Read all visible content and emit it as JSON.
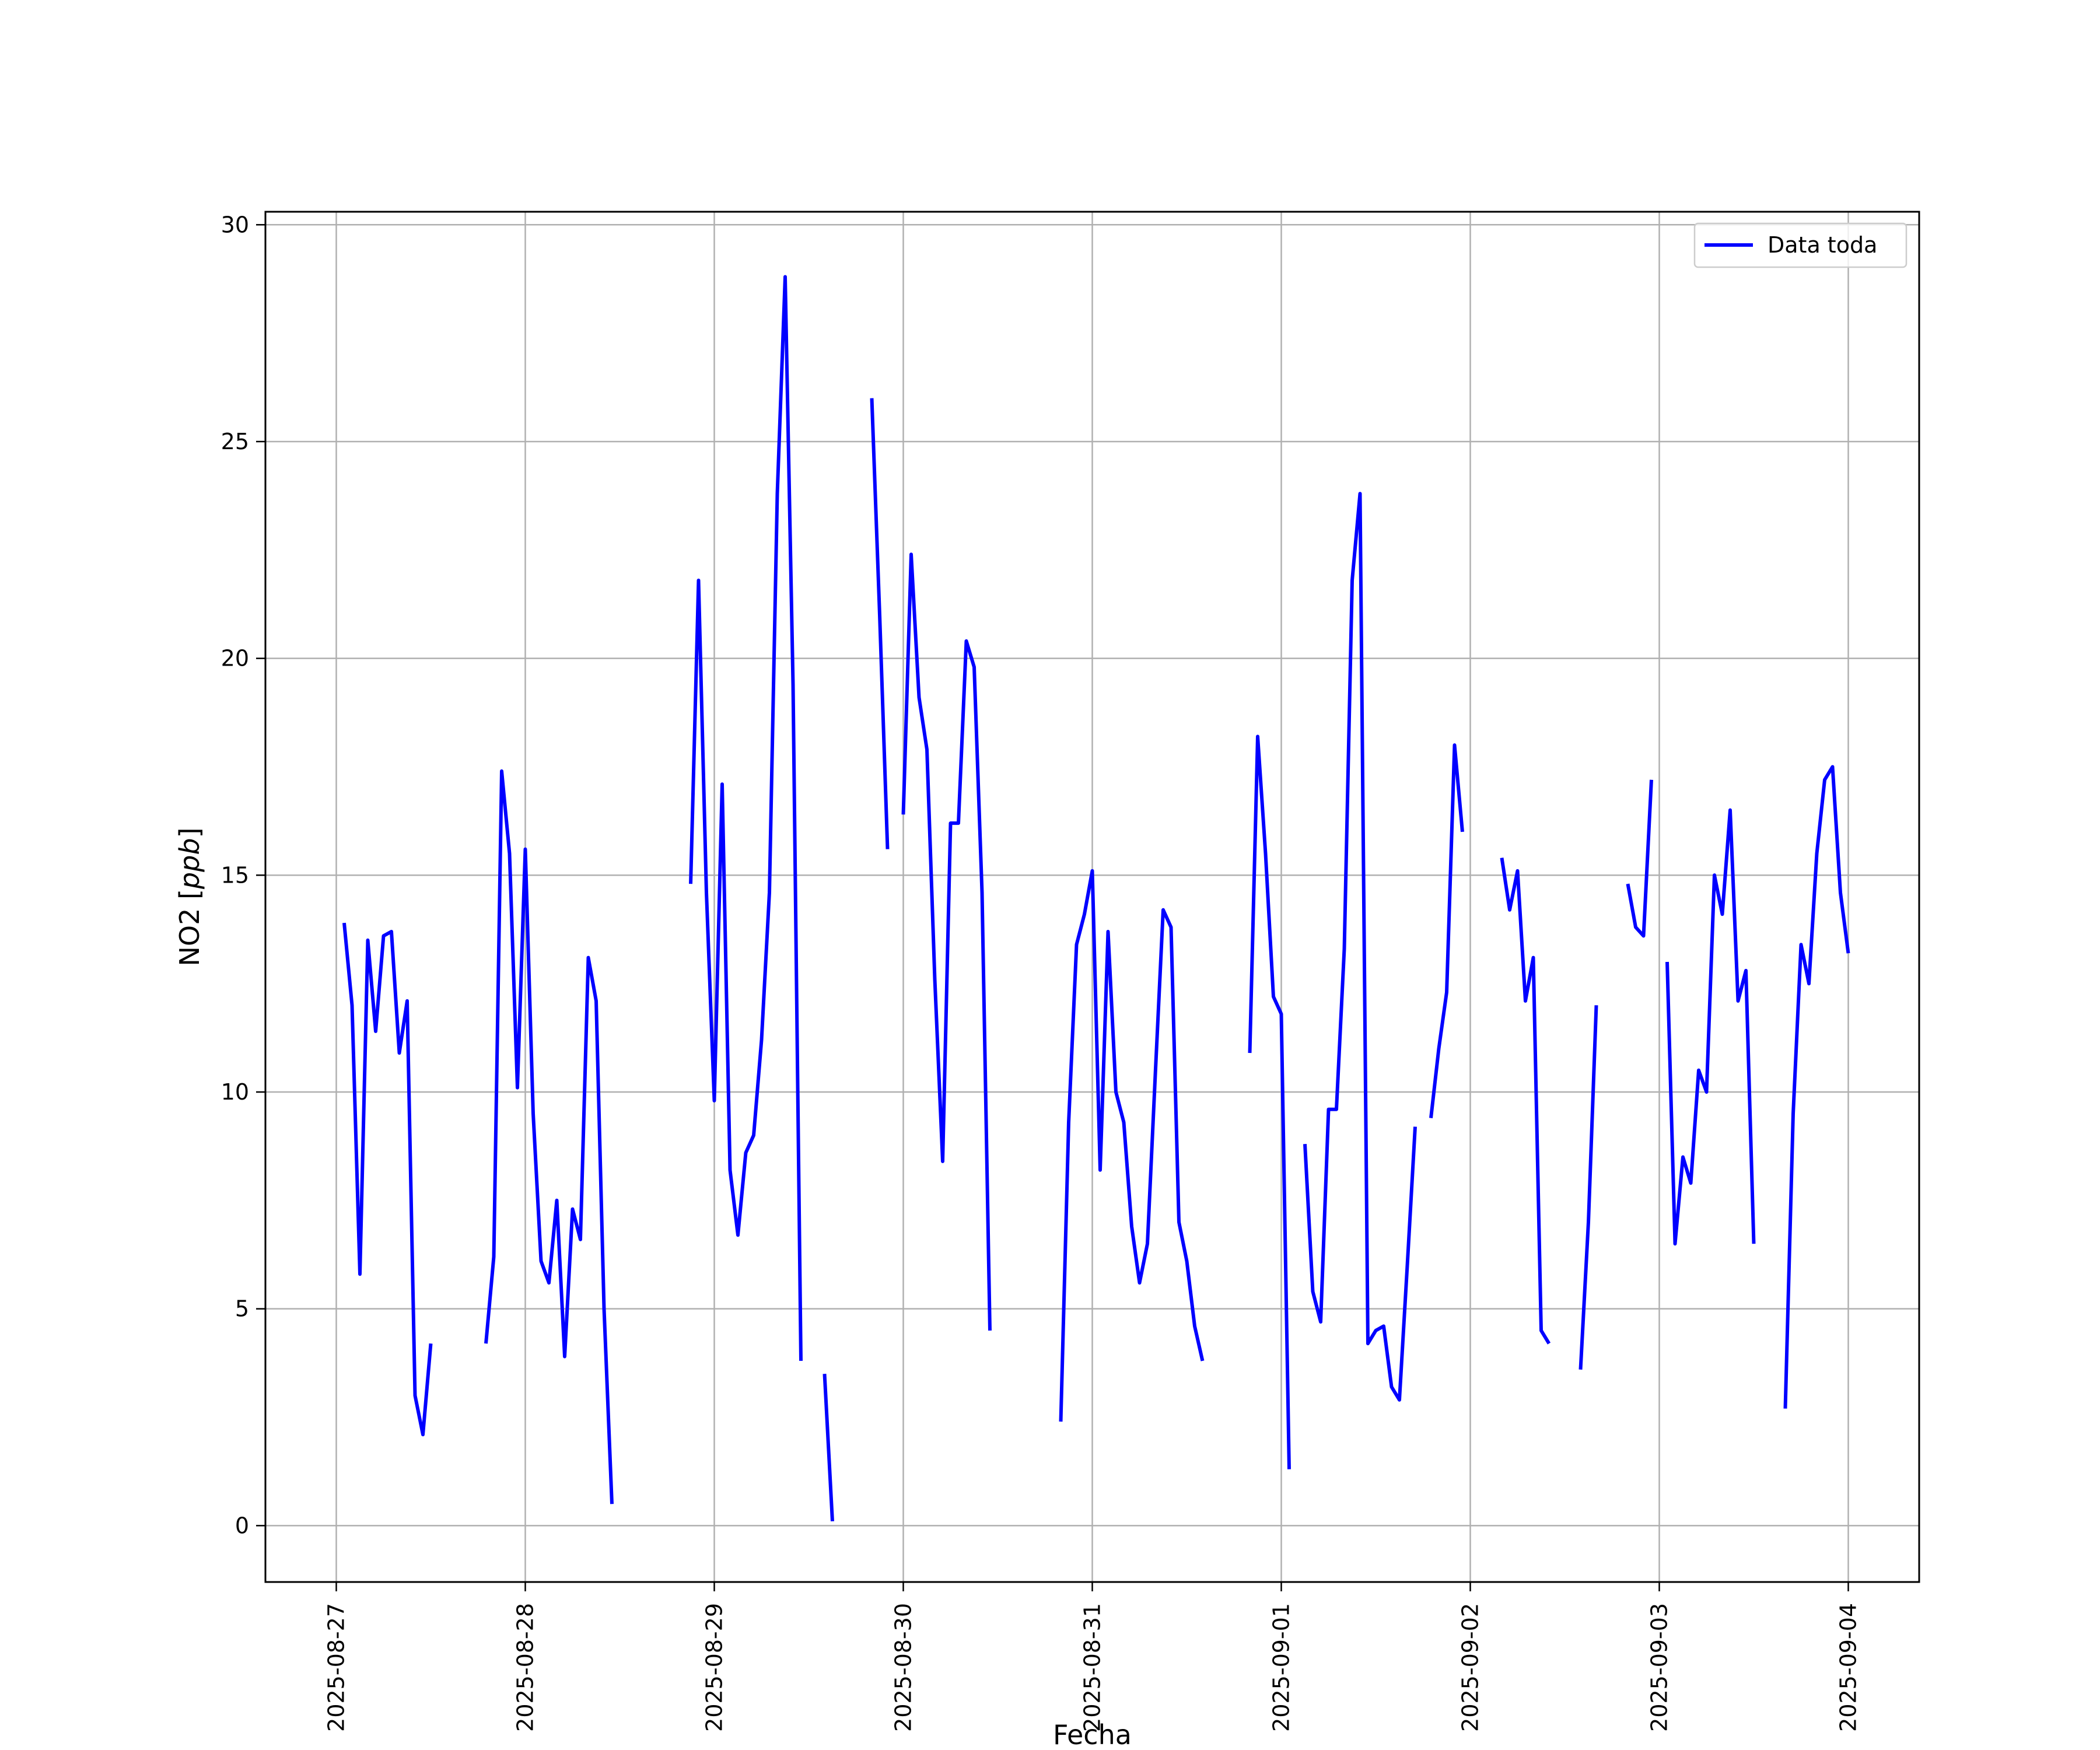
{
  "chart_data": {
    "type": "line",
    "title": "",
    "xlabel": "Fecha",
    "ylabel_prefix": "NO2 [",
    "ylabel_unit": "ppb",
    "ylabel_suffix": "]",
    "x_axis": {
      "type": "date",
      "range": [
        "2025-08-26T15:00",
        "2025-09-04T09:00"
      ],
      "ticks": [
        "2025-08-27",
        "2025-08-28",
        "2025-08-29",
        "2025-08-30",
        "2025-08-31",
        "2025-09-01",
        "2025-09-02",
        "2025-09-03",
        "2025-09-04"
      ],
      "tick_rotation": 90
    },
    "y_axis": {
      "range": [
        -1.3,
        30.3
      ],
      "ticks": [
        0,
        5,
        10,
        15,
        20,
        25,
        30
      ]
    },
    "grid": true,
    "legend": {
      "position": "top-right"
    },
    "series": [
      {
        "name": "Data toda",
        "color": "#0000ff",
        "segments": [
          [
            [
              "2025-08-27T01:00",
              13.9
            ],
            [
              "2025-08-27T02:00",
              12.0
            ],
            [
              "2025-08-27T03:00",
              5.8
            ],
            [
              "2025-08-27T04:00",
              13.5
            ],
            [
              "2025-08-27T05:00",
              11.4
            ],
            [
              "2025-08-27T06:00",
              13.6
            ],
            [
              "2025-08-27T07:00",
              13.7
            ],
            [
              "2025-08-27T08:00",
              10.9
            ],
            [
              "2025-08-27T09:00",
              12.1
            ],
            [
              "2025-08-27T10:00",
              3.0
            ],
            [
              "2025-08-27T11:00",
              2.1
            ],
            [
              "2025-08-27T12:00",
              4.2
            ]
          ],
          [
            [
              "2025-08-27T19:00",
              4.2
            ],
            [
              "2025-08-27T20:00",
              6.2
            ],
            [
              "2025-08-27T21:00",
              17.4
            ],
            [
              "2025-08-27T22:00",
              15.5
            ],
            [
              "2025-08-27T23:00",
              10.1
            ],
            [
              "2025-08-28T00:00",
              15.6
            ],
            [
              "2025-08-28T01:00",
              9.5
            ],
            [
              "2025-08-28T02:00",
              6.1
            ],
            [
              "2025-08-28T03:00",
              5.6
            ],
            [
              "2025-08-28T04:00",
              7.5
            ],
            [
              "2025-08-28T05:00",
              3.9
            ],
            [
              "2025-08-28T06:00",
              7.3
            ],
            [
              "2025-08-28T07:00",
              6.6
            ],
            [
              "2025-08-28T08:00",
              13.1
            ],
            [
              "2025-08-28T09:00",
              12.1
            ],
            [
              "2025-08-28T10:00",
              5.0
            ],
            [
              "2025-08-28T11:00",
              0.5
            ]
          ],
          [
            [
              "2025-08-28T21:00",
              14.8
            ],
            [
              "2025-08-28T22:00",
              21.8
            ],
            [
              "2025-08-28T23:00",
              14.6
            ],
            [
              "2025-08-29T00:00",
              9.8
            ],
            [
              "2025-08-29T01:00",
              17.1
            ],
            [
              "2025-08-29T02:00",
              8.2
            ],
            [
              "2025-08-29T03:00",
              6.7
            ],
            [
              "2025-08-29T04:00",
              8.6
            ],
            [
              "2025-08-29T05:00",
              9.0
            ],
            [
              "2025-08-29T06:00",
              11.2
            ],
            [
              "2025-08-29T07:00",
              14.6
            ],
            [
              "2025-08-29T08:00",
              23.8
            ],
            [
              "2025-08-29T09:00",
              28.8
            ],
            [
              "2025-08-29T10:00",
              19.4
            ],
            [
              "2025-08-29T11:00",
              3.8
            ]
          ],
          [
            [
              "2025-08-29T14:00",
              3.5
            ],
            [
              "2025-08-29T15:00",
              0.1
            ]
          ],
          [
            [
              "2025-08-29T20:00",
              26.0
            ],
            [
              "2025-08-29T21:00",
              21.0
            ],
            [
              "2025-08-29T22:00",
              15.6
            ]
          ],
          [
            [
              "2025-08-30T00:00",
              16.4
            ],
            [
              "2025-08-30T01:00",
              22.4
            ],
            [
              "2025-08-30T02:00",
              19.1
            ],
            [
              "2025-08-30T03:00",
              17.9
            ],
            [
              "2025-08-30T04:00",
              12.6
            ],
            [
              "2025-08-30T05:00",
              8.4
            ],
            [
              "2025-08-30T06:00",
              16.2
            ],
            [
              "2025-08-30T07:00",
              16.2
            ],
            [
              "2025-08-30T08:00",
              20.4
            ],
            [
              "2025-08-30T09:00",
              19.8
            ],
            [
              "2025-08-30T10:00",
              14.6
            ],
            [
              "2025-08-30T11:00",
              4.5
            ]
          ],
          [
            [
              "2025-08-30T20:00",
              2.4
            ],
            [
              "2025-08-30T21:00",
              9.3
            ],
            [
              "2025-08-30T22:00",
              13.4
            ],
            [
              "2025-08-30T23:00",
              14.1
            ],
            [
              "2025-08-31T00:00",
              15.1
            ],
            [
              "2025-08-31T01:00",
              8.2
            ],
            [
              "2025-08-31T02:00",
              13.7
            ],
            [
              "2025-08-31T03:00",
              10.0
            ],
            [
              "2025-08-31T04:00",
              9.3
            ],
            [
              "2025-08-31T05:00",
              6.9
            ],
            [
              "2025-08-31T06:00",
              5.6
            ],
            [
              "2025-08-31T07:00",
              6.5
            ],
            [
              "2025-08-31T08:00",
              10.4
            ],
            [
              "2025-08-31T09:00",
              14.2
            ],
            [
              "2025-08-31T10:00",
              13.8
            ],
            [
              "2025-08-31T11:00",
              7.0
            ],
            [
              "2025-08-31T12:00",
              6.1
            ],
            [
              "2025-08-31T13:00",
              4.6
            ],
            [
              "2025-08-31T14:00",
              3.8
            ]
          ],
          [
            [
              "2025-08-31T20:00",
              10.9
            ],
            [
              "2025-08-31T21:00",
              18.2
            ],
            [
              "2025-08-31T22:00",
              15.5
            ],
            [
              "2025-08-31T23:00",
              12.2
            ],
            [
              "2025-09-01T00:00",
              11.8
            ],
            [
              "2025-09-01T01:00",
              1.3
            ]
          ],
          [
            [
              "2025-09-01T03:00",
              8.8
            ],
            [
              "2025-09-01T04:00",
              5.4
            ],
            [
              "2025-09-01T05:00",
              4.7
            ],
            [
              "2025-09-01T06:00",
              9.6
            ],
            [
              "2025-09-01T07:00",
              9.6
            ],
            [
              "2025-09-01T08:00",
              13.3
            ],
            [
              "2025-09-01T09:00",
              21.8
            ],
            [
              "2025-09-01T10:00",
              23.8
            ],
            [
              "2025-09-01T11:00",
              4.2
            ],
            [
              "2025-09-01T12:00",
              4.5
            ],
            [
              "2025-09-01T13:00",
              4.6
            ],
            [
              "2025-09-01T14:00",
              3.2
            ],
            [
              "2025-09-01T15:00",
              2.9
            ],
            [
              "2025-09-01T16:00",
              6.0
            ],
            [
              "2025-09-01T17:00",
              9.2
            ]
          ],
          [
            [
              "2025-09-01T19:00",
              9.4
            ],
            [
              "2025-09-01T20:00",
              11.0
            ],
            [
              "2025-09-01T21:00",
              12.3
            ],
            [
              "2025-09-01T22:00",
              18.0
            ],
            [
              "2025-09-01T23:00",
              16.0
            ]
          ],
          [
            [
              "2025-09-02T04:00",
              15.4
            ],
            [
              "2025-09-02T05:00",
              14.2
            ],
            [
              "2025-09-02T06:00",
              15.1
            ],
            [
              "2025-09-02T07:00",
              12.1
            ],
            [
              "2025-09-02T08:00",
              13.1
            ],
            [
              "2025-09-02T09:00",
              4.5
            ],
            [
              "2025-09-02T10:00",
              4.2
            ]
          ],
          [
            [
              "2025-09-02T14:00",
              3.6
            ],
            [
              "2025-09-02T15:00",
              7.0
            ],
            [
              "2025-09-02T16:00",
              12.0
            ]
          ],
          [
            [
              "2025-09-02T20:00",
              14.8
            ],
            [
              "2025-09-02T21:00",
              13.8
            ],
            [
              "2025-09-02T22:00",
              13.6
            ],
            [
              "2025-09-02T23:00",
              17.2
            ]
          ],
          [
            [
              "2025-09-03T01:00",
              13.0
            ],
            [
              "2025-09-03T02:00",
              6.5
            ],
            [
              "2025-09-03T03:00",
              8.5
            ],
            [
              "2025-09-03T04:00",
              7.9
            ],
            [
              "2025-09-03T05:00",
              10.5
            ],
            [
              "2025-09-03T06:00",
              10.0
            ],
            [
              "2025-09-03T07:00",
              15.0
            ],
            [
              "2025-09-03T08:00",
              14.1
            ],
            [
              "2025-09-03T09:00",
              16.5
            ],
            [
              "2025-09-03T10:00",
              12.1
            ],
            [
              "2025-09-03T11:00",
              12.8
            ],
            [
              "2025-09-03T12:00",
              6.5
            ]
          ],
          [
            [
              "2025-09-03T16:00",
              2.7
            ],
            [
              "2025-09-03T17:00",
              9.5
            ],
            [
              "2025-09-03T18:00",
              13.4
            ],
            [
              "2025-09-03T19:00",
              12.5
            ],
            [
              "2025-09-03T20:00",
              15.5
            ],
            [
              "2025-09-03T21:00",
              17.2
            ],
            [
              "2025-09-03T22:00",
              17.5
            ],
            [
              "2025-09-03T23:00",
              14.6
            ],
            [
              "2025-09-04T00:00",
              13.2
            ]
          ]
        ]
      }
    ]
  }
}
